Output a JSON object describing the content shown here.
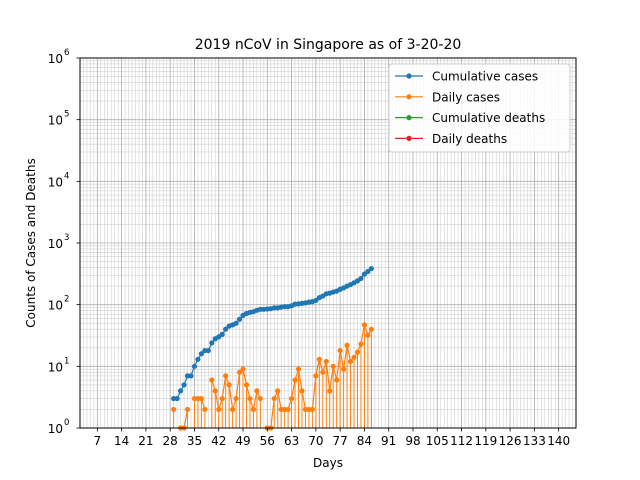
{
  "chart_data": {
    "type": "line",
    "title": "2019 nCoV in Singapore as of 3-20-20",
    "xlabel": "Days",
    "ylabel": "Counts of Cases and Deaths",
    "x_scale": "linear",
    "y_scale": "log",
    "xlim": [
      2,
      145
    ],
    "ylim": [
      1,
      1000000
    ],
    "x_ticks": [
      7,
      14,
      21,
      28,
      35,
      42,
      49,
      56,
      63,
      70,
      77,
      84,
      91,
      98,
      105,
      112,
      119,
      126,
      133,
      140
    ],
    "x_tick_labels": [
      "7",
      "14",
      "21",
      "28",
      "35",
      "42",
      "49",
      "56",
      "63",
      "70",
      "77",
      "84",
      "91",
      "98",
      "105",
      "112",
      "119",
      "126",
      "133",
      "140"
    ],
    "y_ticks": [
      1,
      10,
      100,
      1000,
      10000,
      100000,
      1000000
    ],
    "y_tick_labels": [
      "10",
      "10",
      "10",
      "10",
      "10",
      "10",
      "10"
    ],
    "y_tick_exponents": [
      "0",
      "1",
      "2",
      "3",
      "4",
      "5",
      "6"
    ],
    "grid": "major and minor",
    "legend_position": "top-right",
    "series": [
      {
        "name": "Cumulative cases",
        "color": "#1f77b4",
        "stems": false,
        "x": [
          29,
          30,
          31,
          32,
          33,
          34,
          35,
          36,
          37,
          38,
          39,
          40,
          41,
          42,
          43,
          44,
          45,
          46,
          47,
          48,
          49,
          50,
          51,
          52,
          53,
          54,
          55,
          56,
          57,
          58,
          59,
          60,
          61,
          62,
          63,
          64,
          65,
          66,
          67,
          68,
          69,
          70,
          71,
          72,
          73,
          74,
          75,
          76,
          77,
          78,
          79,
          80,
          81,
          82,
          83,
          84,
          85,
          86
        ],
        "y": [
          3,
          3,
          4,
          5,
          7,
          7,
          10,
          13,
          16,
          18,
          18,
          24,
          28,
          30,
          33,
          40,
          45,
          47,
          50,
          58,
          67,
          72,
          75,
          77,
          81,
          84,
          84,
          85,
          86,
          89,
          89,
          91,
          93,
          93,
          96,
          102,
          103,
          105,
          107,
          110,
          112,
          117,
          130,
          138,
          150,
          154,
          160,
          166,
          178,
          187,
          200,
          212,
          226,
          243,
          266,
          313,
          345,
          385
        ]
      },
      {
        "name": "Daily cases",
        "color": "#ff7f0e",
        "stems": true,
        "x": [
          29,
          30,
          31,
          32,
          33,
          34,
          35,
          36,
          37,
          38,
          39,
          40,
          41,
          42,
          43,
          44,
          45,
          46,
          47,
          48,
          49,
          50,
          51,
          52,
          53,
          54,
          55,
          56,
          57,
          58,
          59,
          60,
          61,
          62,
          63,
          64,
          65,
          66,
          67,
          68,
          69,
          70,
          71,
          72,
          73,
          74,
          75,
          76,
          77,
          78,
          79,
          80,
          81,
          82,
          83,
          84,
          85,
          86
        ],
        "y": [
          2,
          0,
          1,
          1,
          2,
          0,
          3,
          3,
          3,
          2,
          0,
          6,
          4,
          2,
          3,
          7,
          5,
          2,
          3,
          8,
          9,
          5,
          3,
          2,
          4,
          3,
          0,
          1,
          1,
          3,
          4,
          2,
          2,
          2,
          3,
          6,
          9,
          4,
          2,
          2,
          2,
          7,
          13,
          8,
          12,
          4,
          10,
          6,
          18,
          9,
          22,
          12,
          14,
          17,
          23,
          47,
          32,
          40
        ]
      },
      {
        "name": "Cumulative deaths",
        "color": "#2ca02c",
        "stems": false,
        "x": [],
        "y": []
      },
      {
        "name": "Daily deaths",
        "color": "#d62728",
        "stems": false,
        "x": [],
        "y": []
      }
    ]
  }
}
